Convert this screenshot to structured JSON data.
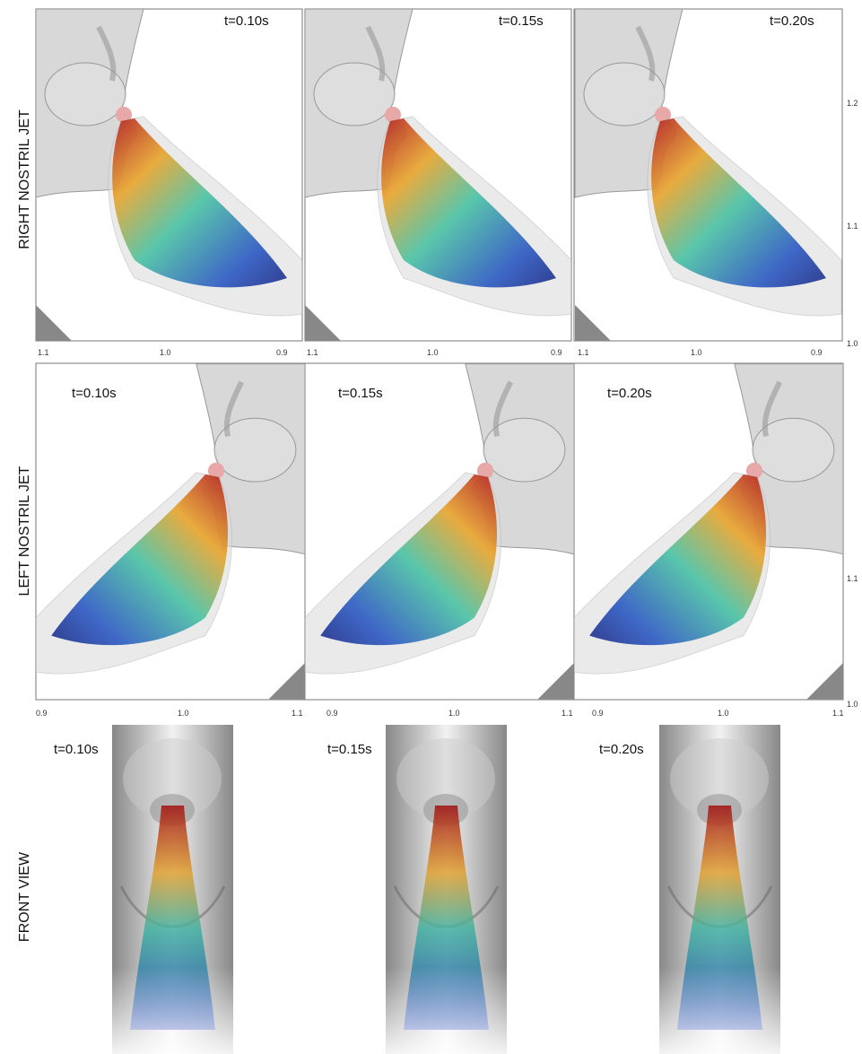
{
  "rows": [
    {
      "label": "RIGHT NOSTRIL JET",
      "panels": [
        {
          "time": "t=0.10s",
          "x_ticks": [
            "1.1",
            "1.0",
            "0.9"
          ]
        },
        {
          "time": "t=0.15s",
          "x_ticks": [
            "1.1",
            "1.0",
            "0.9"
          ]
        },
        {
          "time": "t=0.20s",
          "x_ticks": [
            "1.1",
            "1.0",
            "0.9"
          ]
        }
      ],
      "y_ticks": [
        "1.2",
        "1.1",
        "1.0"
      ]
    },
    {
      "label": "LEFT NOSTRIL JET",
      "panels": [
        {
          "time": "t=0.10s",
          "x_ticks": [
            "0.9",
            "1.0",
            "1.1"
          ]
        },
        {
          "time": "t=0.15s",
          "x_ticks": [
            "0.9",
            "1.0",
            "1.1"
          ]
        },
        {
          "time": "t=0.20s",
          "x_ticks": [
            "0.9",
            "1.0",
            "1.1"
          ]
        }
      ],
      "y_ticks": [
        "1.1",
        "1.0"
      ]
    },
    {
      "label": "FRONT VIEW",
      "panels": [
        {
          "time": "t=0.10s"
        },
        {
          "time": "t=0.15s"
        },
        {
          "time": "t=0.20s"
        }
      ]
    }
  ]
}
